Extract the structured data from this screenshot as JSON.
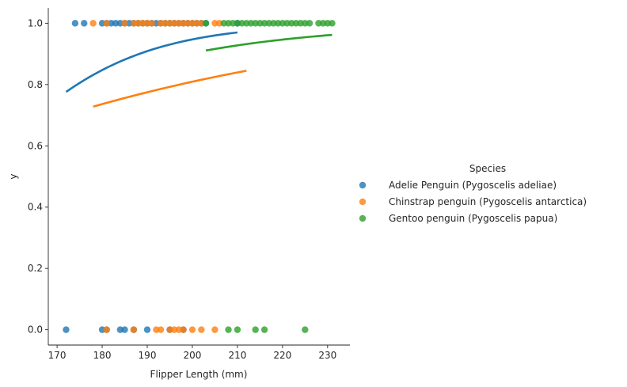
{
  "chart_data": {
    "type": "scatter",
    "xlabel": "Flipper Length (mm)",
    "ylabel": "y",
    "xlim": [
      168.05,
      234.95
    ],
    "ylim": [
      -0.05,
      1.05
    ],
    "xticks": [
      170,
      180,
      190,
      200,
      210,
      220,
      230
    ],
    "yticks": [
      0.0,
      0.2,
      0.4,
      0.6,
      0.8,
      1.0
    ],
    "xtick_labels": [
      "170",
      "180",
      "190",
      "200",
      "210",
      "220",
      "230"
    ],
    "ytick_labels": [
      "0.0",
      "0.2",
      "0.4",
      "0.6",
      "0.8",
      "1.0"
    ],
    "grid": false,
    "legend": {
      "title": "Species",
      "placement": "right"
    },
    "series": [
      {
        "name": "Adelie Penguin (Pygoscelis adeliae)",
        "color": "#1f77b4",
        "points_y1": [
          174,
          176,
          180,
          181,
          182,
          183,
          184,
          185,
          186,
          187,
          188,
          189,
          190,
          191,
          192,
          193,
          194,
          195,
          196,
          197,
          198,
          199,
          200,
          201,
          202,
          203,
          210
        ],
        "points_y0": [
          172,
          180,
          181,
          184,
          185,
          187,
          190,
          195,
          198
        ],
        "fit_x": [
          172,
          210
        ],
        "fit_y_start": 0.776,
        "fit_y_end": 0.97
      },
      {
        "name": "Chinstrap penguin (Pygoscelis antarctica)",
        "color": "#ff7f0e",
        "points_y1": [
          178,
          181,
          185,
          187,
          188,
          189,
          190,
          191,
          193,
          194,
          195,
          196,
          197,
          198,
          199,
          200,
          201,
          202,
          205,
          206
        ],
        "points_y0": [
          181,
          187,
          192,
          193,
          195,
          196,
          197,
          198,
          200,
          202,
          205
        ],
        "fit_x": [
          178,
          212
        ],
        "fit_y_start": 0.728,
        "fit_y_end": 0.845
      },
      {
        "name": "Gentoo penguin (Pygoscelis papua)",
        "color": "#2ca02c",
        "points_y1": [
          203,
          207,
          208,
          209,
          210,
          211,
          212,
          213,
          214,
          215,
          216,
          217,
          218,
          219,
          220,
          221,
          222,
          223,
          224,
          225,
          226,
          228,
          229,
          230,
          231
        ],
        "points_y0": [
          208,
          210,
          214,
          216,
          225
        ],
        "fit_x": [
          203,
          231
        ],
        "fit_y_start": 0.911,
        "fit_y_end": 0.962
      }
    ]
  }
}
